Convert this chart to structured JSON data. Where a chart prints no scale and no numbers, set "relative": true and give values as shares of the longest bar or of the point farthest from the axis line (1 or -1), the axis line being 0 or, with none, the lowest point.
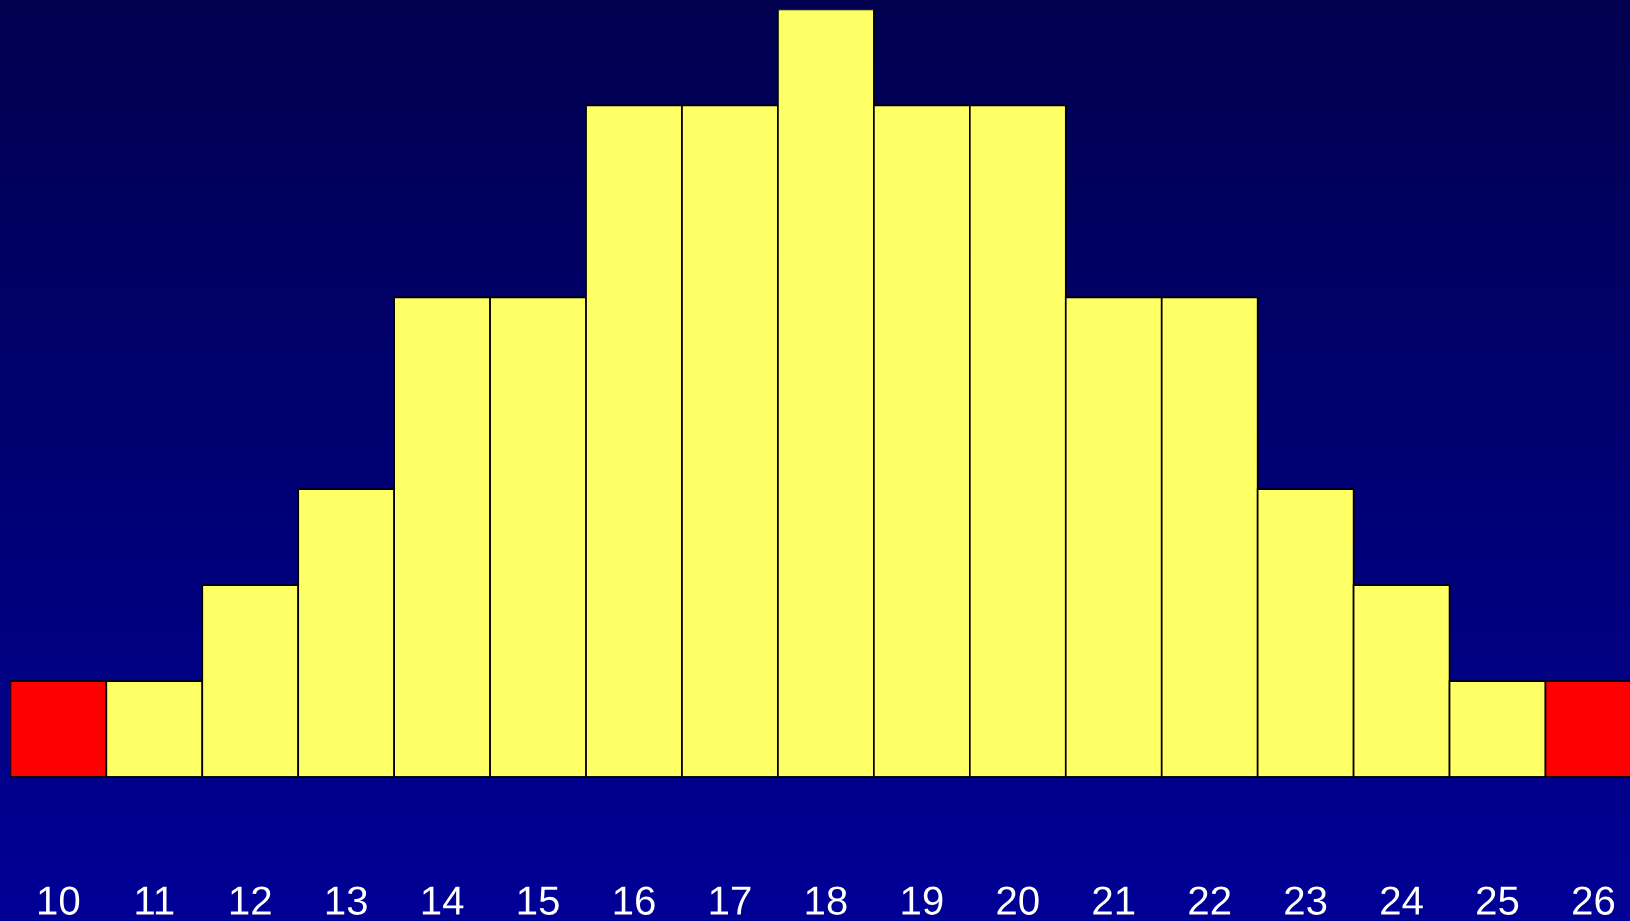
{
  "chart_data": {
    "type": "bar",
    "relative": true,
    "categories": [
      "10",
      "11",
      "12",
      "13",
      "14",
      "15",
      "16",
      "17",
      "18",
      "19",
      "20",
      "21",
      "22",
      "23",
      "24",
      "25",
      "26"
    ],
    "values": [
      0.125,
      0.125,
      0.25,
      0.375,
      0.625,
      0.625,
      0.875,
      0.875,
      1,
      0.875,
      0.875,
      0.625,
      0.625,
      0.375,
      0.25,
      0.125,
      0.125
    ],
    "colors": [
      "#ff0000",
      "#ffff66",
      "#ffff66",
      "#ffff66",
      "#ffff66",
      "#ffff66",
      "#ffff66",
      "#ffff66",
      "#ffff66",
      "#ffff66",
      "#ffff66",
      "#ffff66",
      "#ffff66",
      "#ffff66",
      "#ffff66",
      "#ffff66",
      "#ff0000"
    ],
    "grid": false,
    "legend": false
  }
}
